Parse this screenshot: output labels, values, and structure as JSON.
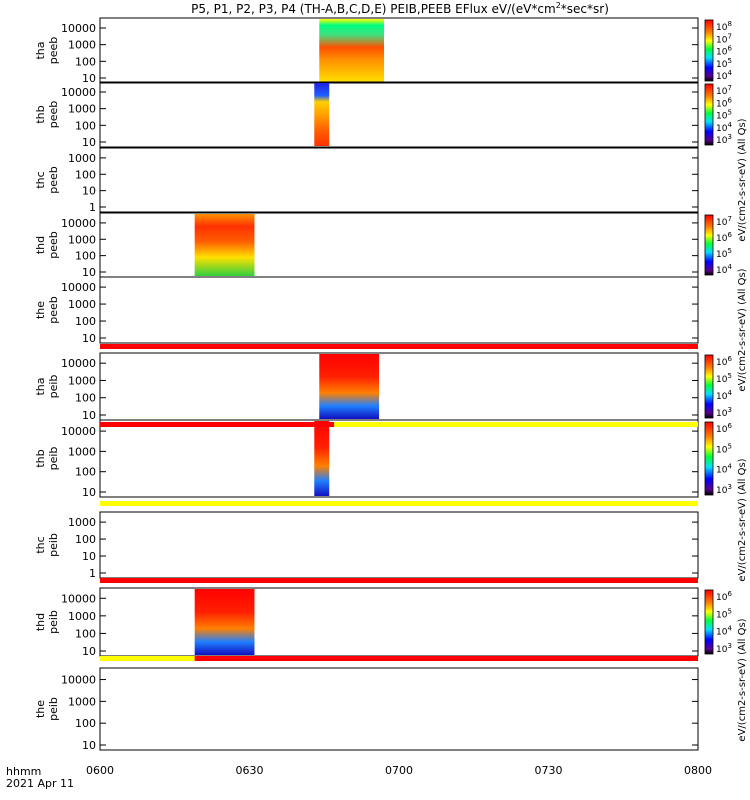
{
  "title_prefix": "P5, P1, P2, P3, P4 (TH-A,B,C,D,E) PEIB,PEEB EFlux eV/(eV*cm",
  "title_sup": "2",
  "title_suffix": "*sec*sr)",
  "x_ticks": [
    "0600",
    "0630",
    "0700",
    "0730",
    "0800"
  ],
  "x_axis_label_line1": "hhmm",
  "x_axis_label_line2": "2021 Apr 11",
  "colorbar_units_eflux_cm2": "eV/(cm2-s-sr-eV)",
  "colorbar_units_eflux_all": "(All Qs)",
  "chart_data": {
    "type": "heatmap",
    "x_range": [
      "06:00",
      "08:00"
    ],
    "panels": [
      {
        "name": "tha peeb",
        "label1": "tha",
        "label2": "peeb",
        "y_ticks": [
          "10",
          "100",
          "1000",
          "10000"
        ],
        "cbar_ticks": [
          "10^8",
          "10^7",
          "10^6",
          "10^5",
          "10^4"
        ],
        "data_interval": [
          "06:44",
          "06:57"
        ]
      },
      {
        "name": "thb peeb",
        "label1": "thb",
        "label2": "peeb",
        "y_ticks": [
          "10",
          "100",
          "1000",
          "10000"
        ],
        "cbar_ticks": [
          "10^7",
          "10^6",
          "10^5",
          "10^4",
          "10^3"
        ],
        "data_interval": [
          "06:43",
          "06:46"
        ]
      },
      {
        "name": "thc peeb",
        "label1": "thc",
        "label2": "peeb",
        "y_ticks": [
          "1",
          "10",
          "100",
          "1000"
        ],
        "cbar_ticks": [],
        "data_interval": null
      },
      {
        "name": "thd peeb",
        "label1": "thd",
        "label2": "peeb",
        "y_ticks": [
          "10",
          "100",
          "1000",
          "10000"
        ],
        "cbar_ticks": [
          "10^7",
          "10^6",
          "10^5",
          "10^4"
        ],
        "data_interval": [
          "06:19",
          "06:31"
        ]
      },
      {
        "name": "the peeb",
        "label1": "the",
        "label2": "peeb",
        "y_ticks": [
          "10",
          "100",
          "1000",
          "10000"
        ],
        "cbar_ticks": [],
        "data_interval": null
      },
      {
        "name": "tha peib",
        "label1": "tha",
        "label2": "peib",
        "y_ticks": [
          "10",
          "100",
          "1000",
          "10000"
        ],
        "cbar_ticks": [
          "10^6",
          "10^5",
          "10^4",
          "10^3"
        ],
        "data_interval": [
          "06:44",
          "06:56"
        ]
      },
      {
        "name": "thb peib",
        "label1": "thb",
        "label2": "peib",
        "y_ticks": [
          "10",
          "100",
          "1000",
          "10000"
        ],
        "cbar_ticks": [
          "10^6",
          "10^5",
          "10^4",
          "10^3"
        ],
        "data_interval": [
          "06:43",
          "06:46"
        ]
      },
      {
        "name": "thc peib",
        "label1": "thc",
        "label2": "peib",
        "y_ticks": [
          "1",
          "10",
          "100",
          "1000"
        ],
        "cbar_ticks": [],
        "data_interval": null
      },
      {
        "name": "thd peib",
        "label1": "thd",
        "label2": "peib",
        "y_ticks": [
          "10",
          "100",
          "1000",
          "10000"
        ],
        "cbar_ticks": [
          "10^6",
          "10^5",
          "10^4",
          "10^3"
        ],
        "data_interval": [
          "06:19",
          "06:31"
        ]
      },
      {
        "name": "the peib",
        "label1": "the",
        "label2": "peib",
        "y_ticks": [
          "10",
          "100",
          "1000",
          "10000"
        ],
        "cbar_ticks": [],
        "data_interval": null
      }
    ],
    "colors": {
      "bar_red": "#ff0000",
      "bar_yellow": "#ffff00",
      "bar_black": "#000000"
    }
  }
}
